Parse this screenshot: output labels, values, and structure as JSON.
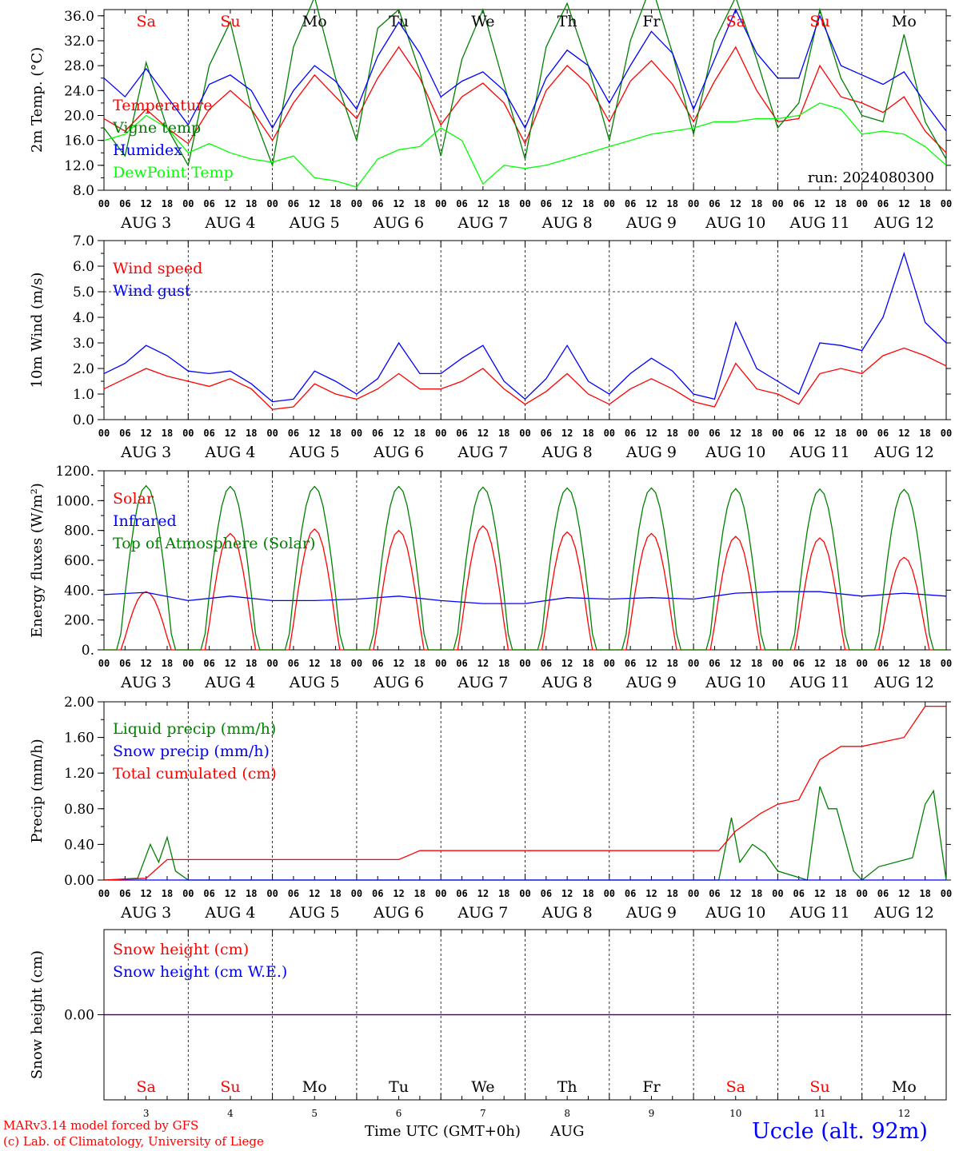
{
  "common": {
    "x_range_days": [
      0,
      10
    ],
    "hour_ticks": [
      "00",
      "06",
      "12",
      "18"
    ],
    "date_labels": [
      "AUG  3",
      "AUG  4",
      "AUG  5",
      "AUG  6",
      "AUG  7",
      "AUG  8",
      "AUG  9",
      "AUG 10",
      "AUG 11",
      "AUG 12"
    ],
    "weekdays": [
      "Sa",
      "Su",
      "Mo",
      "Tu",
      "We",
      "Th",
      "Fr",
      "Sa",
      "Su",
      "Mo"
    ],
    "weekday_colors": [
      "#ff0000",
      "#ff0000",
      "#000000",
      "#000000",
      "#000000",
      "#000000",
      "#000000",
      "#ff0000",
      "#ff0000",
      "#000000"
    ],
    "bottom_day_numbers": [
      "3",
      "4",
      "5",
      "6",
      "7",
      "8",
      "9",
      "10",
      "11",
      "12"
    ],
    "x_axis_title": "Time UTC (GMT+0h)",
    "x_axis_month": "AUG"
  },
  "footer": {
    "credit_line1": "MARv3.14 model forced by GFS",
    "credit_line2": "(c) Lab. of Climatology, University of Liege",
    "station": "Uccle (alt. 92m)"
  },
  "chart_data": [
    {
      "type": "line",
      "ylabel": "2m Temp. (°C)",
      "ylim": [
        8,
        37
      ],
      "yticks": [
        8,
        12,
        16,
        20,
        24,
        28,
        32,
        36
      ],
      "ytick_labels": [
        "8.0",
        "12.0",
        "16.0",
        "20.0",
        "24.0",
        "28.0",
        "32.0",
        "36.0"
      ],
      "annotation": "run: 2024080300",
      "series": [
        {
          "name": "Temperature",
          "color": "#ff0000",
          "x": [
            0,
            0.25,
            0.5,
            0.75,
            1,
            1.25,
            1.5,
            1.75,
            2,
            2.25,
            2.5,
            2.75,
            3,
            3.25,
            3.5,
            3.75,
            4,
            4.25,
            4.5,
            4.75,
            5,
            5.25,
            5.5,
            5.75,
            6,
            6.25,
            6.5,
            6.75,
            7,
            7.25,
            7.5,
            7.75,
            8,
            8.25,
            8.5,
            8.75,
            9,
            9.25,
            9.5,
            9.75,
            10
          ],
          "y": [
            19.5,
            17.5,
            21,
            18,
            15.5,
            21,
            24,
            21,
            16,
            22,
            26.5,
            23,
            19.5,
            26,
            31,
            26,
            18.5,
            23,
            25.2,
            22,
            15.5,
            24,
            28,
            25,
            19,
            25.5,
            28.8,
            25,
            19,
            25.5,
            31,
            24,
            19,
            19.5,
            28,
            23,
            22,
            20.5,
            23,
            17.5,
            14
          ]
        },
        {
          "name": "Vigne temp",
          "color": "#008000",
          "x": [
            0,
            0.25,
            0.5,
            0.75,
            1,
            1.25,
            1.5,
            1.75,
            2,
            2.25,
            2.5,
            2.75,
            3,
            3.25,
            3.5,
            3.75,
            4,
            4.25,
            4.5,
            4.75,
            5,
            5.25,
            5.5,
            5.75,
            6,
            6.25,
            6.5,
            6.75,
            7,
            7.25,
            7.5,
            7.75,
            8,
            8.25,
            8.5,
            8.75,
            9,
            9.25,
            9.5,
            9.75,
            10
          ],
          "y": [
            18,
            13.5,
            28.5,
            18,
            12,
            28,
            35,
            21,
            12,
            31,
            39,
            26,
            16,
            34,
            37,
            27,
            13.5,
            29,
            37,
            25,
            13,
            31,
            38,
            28,
            16,
            32,
            41,
            30,
            17,
            32,
            39,
            29,
            18,
            22,
            37,
            26,
            20,
            19,
            33,
            19,
            13
          ]
        },
        {
          "name": "Humidex",
          "color": "#0000ff",
          "x": [
            0,
            0.25,
            0.5,
            0.75,
            1,
            1.25,
            1.5,
            1.75,
            2,
            2.25,
            2.5,
            2.75,
            3,
            3.25,
            3.5,
            3.75,
            4,
            4.25,
            4.5,
            4.75,
            5,
            5.25,
            5.5,
            5.75,
            6,
            6.25,
            6.5,
            6.75,
            7,
            7.25,
            7.5,
            7.75,
            8,
            8.25,
            8.5,
            8.75,
            9,
            9.25,
            9.5,
            9.75,
            10
          ],
          "y": [
            26,
            23,
            27.5,
            23,
            18.5,
            25,
            26.5,
            24,
            18,
            24,
            28,
            25.5,
            21,
            29.5,
            35,
            30,
            23,
            25.5,
            27,
            24,
            18,
            26,
            30.5,
            28,
            22,
            28,
            33.5,
            30,
            21,
            29,
            37,
            30,
            26,
            26,
            36,
            28,
            26.5,
            25,
            27,
            22,
            17.5
          ]
        },
        {
          "name": "DewPoint Temp",
          "color": "#00ff00",
          "x": [
            0,
            0.25,
            0.5,
            0.75,
            1,
            1.25,
            1.5,
            1.75,
            2,
            2.25,
            2.5,
            2.75,
            3,
            3.25,
            3.5,
            3.75,
            4,
            4.25,
            4.5,
            4.75,
            5,
            5.25,
            5.5,
            5.75,
            6,
            6.25,
            6.5,
            6.75,
            7,
            7.25,
            7.5,
            7.75,
            8,
            8.25,
            8.5,
            8.75,
            9,
            9.25,
            9.5,
            9.75,
            10
          ],
          "y": [
            16,
            17,
            20,
            18,
            14,
            15.5,
            14,
            13,
            12.5,
            13.5,
            10,
            9.5,
            8.5,
            13,
            14.5,
            15,
            18,
            16,
            9,
            12,
            11.5,
            12,
            13,
            14,
            15,
            16,
            17,
            17.5,
            18,
            19,
            19,
            19.5,
            19.5,
            20,
            22,
            21,
            17,
            17.5,
            17,
            15,
            12
          ]
        }
      ]
    },
    {
      "type": "line",
      "ylabel": "10m Wind (m/s)",
      "ylim": [
        0,
        7
      ],
      "yticks": [
        0,
        1,
        2,
        3,
        4,
        5,
        6,
        7
      ],
      "ytick_labels": [
        "0.0",
        "1.0",
        "2.0",
        "3.0",
        "4.0",
        "5.0",
        "6.0",
        "7.0"
      ],
      "reference_line": 5,
      "series": [
        {
          "name": "Wind speed",
          "color": "#ff0000",
          "x": [
            0,
            0.25,
            0.5,
            0.75,
            1,
            1.25,
            1.5,
            1.75,
            2,
            2.25,
            2.5,
            2.75,
            3,
            3.25,
            3.5,
            3.75,
            4,
            4.25,
            4.5,
            4.75,
            5,
            5.25,
            5.5,
            5.75,
            6,
            6.25,
            6.5,
            6.75,
            7,
            7.25,
            7.5,
            7.75,
            8,
            8.25,
            8.5,
            8.75,
            9,
            9.25,
            9.5,
            9.75,
            10
          ],
          "y": [
            1.2,
            1.6,
            2.0,
            1.7,
            1.5,
            1.3,
            1.6,
            1.2,
            0.4,
            0.5,
            1.4,
            1.0,
            0.8,
            1.2,
            1.8,
            1.2,
            1.2,
            1.5,
            2.0,
            1.2,
            0.6,
            1.1,
            1.8,
            1.0,
            0.6,
            1.2,
            1.6,
            1.2,
            0.7,
            0.5,
            2.2,
            1.2,
            1.0,
            0.6,
            1.8,
            2.0,
            1.8,
            2.5,
            2.8,
            2.5,
            2.1
          ]
        },
        {
          "name": "Wind gust",
          "color": "#0000ff",
          "x": [
            0,
            0.25,
            0.5,
            0.75,
            1,
            1.25,
            1.5,
            1.75,
            2,
            2.25,
            2.5,
            2.75,
            3,
            3.25,
            3.5,
            3.75,
            4,
            4.25,
            4.5,
            4.75,
            5,
            5.25,
            5.5,
            5.75,
            6,
            6.25,
            6.5,
            6.75,
            7,
            7.25,
            7.5,
            7.75,
            8,
            8.25,
            8.5,
            8.75,
            9,
            9.25,
            9.5,
            9.75,
            10
          ],
          "y": [
            1.8,
            2.2,
            2.9,
            2.5,
            1.9,
            1.8,
            1.9,
            1.4,
            0.7,
            0.8,
            1.9,
            1.5,
            1.0,
            1.6,
            3.0,
            1.8,
            1.8,
            2.4,
            2.9,
            1.5,
            0.8,
            1.6,
            2.9,
            1.5,
            1.0,
            1.8,
            2.4,
            1.9,
            1.0,
            0.8,
            3.8,
            2.0,
            1.5,
            1.0,
            3.0,
            2.9,
            2.7,
            4.0,
            6.5,
            3.8,
            3.0
          ]
        }
      ]
    },
    {
      "type": "line",
      "ylabel": "Energy fluxes (W/m²)",
      "ylim": [
        0,
        1200
      ],
      "yticks": [
        0,
        200,
        400,
        600,
        800,
        1000,
        1200
      ],
      "ytick_labels": [
        "0.",
        "200.",
        "400.",
        "600.",
        "800.",
        "1000.",
        "1200."
      ],
      "series": [
        {
          "name": "Solar",
          "color": "#ff0000",
          "diurnal_peak_day_fraction": 0.5,
          "diurnal_half_width_days": 0.29,
          "daily_peaks": [
            390,
            780,
            810,
            800,
            830,
            790,
            780,
            760,
            750,
            620
          ]
        },
        {
          "name": "Infrared",
          "color": "#0000ff",
          "x": [
            0,
            0.5,
            1,
            1.5,
            2,
            2.5,
            3,
            3.5,
            4,
            4.5,
            5,
            5.5,
            6,
            6.5,
            7,
            7.5,
            8,
            8.5,
            9,
            9.5,
            10
          ],
          "y": [
            370,
            385,
            330,
            360,
            330,
            330,
            340,
            360,
            330,
            310,
            310,
            350,
            340,
            350,
            340,
            380,
            390,
            390,
            360,
            380,
            360
          ]
        },
        {
          "name": "Top of Atmosphere (Solar)",
          "color": "#008000",
          "diurnal_peak_day_fraction": 0.5,
          "diurnal_half_width_days": 0.32,
          "daily_peaks": [
            1100,
            1095,
            1095,
            1095,
            1090,
            1085,
            1085,
            1080,
            1078,
            1075
          ]
        }
      ]
    },
    {
      "type": "line",
      "ylabel": "Precip (mm/h)",
      "ylim": [
        0,
        2
      ],
      "yticks": [
        0,
        0.4,
        0.8,
        1.2,
        1.6,
        2.0
      ],
      "ytick_labels": [
        "0.00",
        "0.40",
        "0.80",
        "1.20",
        "1.60",
        "2.00"
      ],
      "series": [
        {
          "name": "Liquid precip (mm/h)",
          "color": "#008000",
          "x": [
            0,
            0.4,
            0.55,
            0.65,
            0.75,
            0.85,
            1,
            6,
            6.25,
            6.4,
            7.3,
            7.45,
            7.55,
            7.7,
            7.85,
            8,
            8.35,
            8.5,
            8.6,
            8.7,
            8.9,
            9,
            9.2,
            9.6,
            9.75,
            9.85,
            10
          ],
          "y": [
            0,
            0.02,
            0.4,
            0.2,
            0.48,
            0.1,
            0,
            0,
            0,
            0,
            0,
            0.7,
            0.2,
            0.4,
            0.3,
            0.1,
            0,
            1.05,
            0.8,
            0.8,
            0.1,
            0,
            0.15,
            0.25,
            0.85,
            1.0,
            0
          ]
        },
        {
          "name": "Snow precip (mm/h)",
          "color": "#0000ff",
          "x": [
            0,
            10
          ],
          "y": [
            0,
            0
          ]
        },
        {
          "name": "Total cumulated (cm)",
          "color": "#ff0000",
          "x": [
            0,
            0.5,
            0.75,
            0.8,
            3.5,
            3.75,
            3.8,
            7.3,
            7.5,
            7.8,
            8,
            8.25,
            8.5,
            8.75,
            9.0,
            9.5,
            9.75,
            9.8,
            10
          ],
          "y": [
            0,
            0.02,
            0.23,
            0.23,
            0.23,
            0.33,
            0.33,
            0.33,
            0.55,
            0.75,
            0.85,
            0.9,
            1.35,
            1.5,
            1.5,
            1.6,
            1.95,
            1.95,
            1.95
          ]
        }
      ]
    },
    {
      "type": "line",
      "ylabel": "Snow height (cm)",
      "ylim": [
        -1,
        1
      ],
      "yticks": [
        0
      ],
      "ytick_labels": [
        "0.00"
      ],
      "series": [
        {
          "name": "Snow height (cm)",
          "color": "#ff0000",
          "x": [
            0,
            10
          ],
          "y": [
            0,
            0
          ]
        },
        {
          "name": "Snow height (cm W.E.)",
          "color": "#0000ff",
          "x": [
            0,
            10
          ],
          "y": [
            0,
            0
          ]
        }
      ]
    }
  ]
}
